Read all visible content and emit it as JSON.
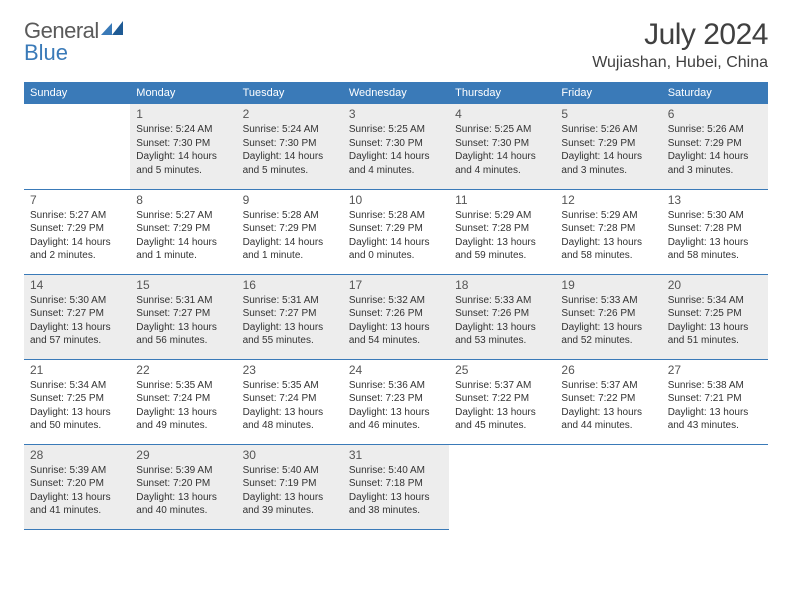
{
  "logo": {
    "text1": "General",
    "text2": "Blue"
  },
  "title": "July 2024",
  "location": "Wujiashan, Hubei, China",
  "weekdays": [
    "Sunday",
    "Monday",
    "Tuesday",
    "Wednesday",
    "Thursday",
    "Friday",
    "Saturday"
  ],
  "header_bg": "#3a7ab8",
  "shade_bg": "#ededed",
  "days": [
    {
      "n": 1,
      "sr": "5:24 AM",
      "ss": "7:30 PM",
      "dl": "14 hours and 5 minutes."
    },
    {
      "n": 2,
      "sr": "5:24 AM",
      "ss": "7:30 PM",
      "dl": "14 hours and 5 minutes."
    },
    {
      "n": 3,
      "sr": "5:25 AM",
      "ss": "7:30 PM",
      "dl": "14 hours and 4 minutes."
    },
    {
      "n": 4,
      "sr": "5:25 AM",
      "ss": "7:30 PM",
      "dl": "14 hours and 4 minutes."
    },
    {
      "n": 5,
      "sr": "5:26 AM",
      "ss": "7:29 PM",
      "dl": "14 hours and 3 minutes."
    },
    {
      "n": 6,
      "sr": "5:26 AM",
      "ss": "7:29 PM",
      "dl": "14 hours and 3 minutes."
    },
    {
      "n": 7,
      "sr": "5:27 AM",
      "ss": "7:29 PM",
      "dl": "14 hours and 2 minutes."
    },
    {
      "n": 8,
      "sr": "5:27 AM",
      "ss": "7:29 PM",
      "dl": "14 hours and 1 minute."
    },
    {
      "n": 9,
      "sr": "5:28 AM",
      "ss": "7:29 PM",
      "dl": "14 hours and 1 minute."
    },
    {
      "n": 10,
      "sr": "5:28 AM",
      "ss": "7:29 PM",
      "dl": "14 hours and 0 minutes."
    },
    {
      "n": 11,
      "sr": "5:29 AM",
      "ss": "7:28 PM",
      "dl": "13 hours and 59 minutes."
    },
    {
      "n": 12,
      "sr": "5:29 AM",
      "ss": "7:28 PM",
      "dl": "13 hours and 58 minutes."
    },
    {
      "n": 13,
      "sr": "5:30 AM",
      "ss": "7:28 PM",
      "dl": "13 hours and 58 minutes."
    },
    {
      "n": 14,
      "sr": "5:30 AM",
      "ss": "7:27 PM",
      "dl": "13 hours and 57 minutes."
    },
    {
      "n": 15,
      "sr": "5:31 AM",
      "ss": "7:27 PM",
      "dl": "13 hours and 56 minutes."
    },
    {
      "n": 16,
      "sr": "5:31 AM",
      "ss": "7:27 PM",
      "dl": "13 hours and 55 minutes."
    },
    {
      "n": 17,
      "sr": "5:32 AM",
      "ss": "7:26 PM",
      "dl": "13 hours and 54 minutes."
    },
    {
      "n": 18,
      "sr": "5:33 AM",
      "ss": "7:26 PM",
      "dl": "13 hours and 53 minutes."
    },
    {
      "n": 19,
      "sr": "5:33 AM",
      "ss": "7:26 PM",
      "dl": "13 hours and 52 minutes."
    },
    {
      "n": 20,
      "sr": "5:34 AM",
      "ss": "7:25 PM",
      "dl": "13 hours and 51 minutes."
    },
    {
      "n": 21,
      "sr": "5:34 AM",
      "ss": "7:25 PM",
      "dl": "13 hours and 50 minutes."
    },
    {
      "n": 22,
      "sr": "5:35 AM",
      "ss": "7:24 PM",
      "dl": "13 hours and 49 minutes."
    },
    {
      "n": 23,
      "sr": "5:35 AM",
      "ss": "7:24 PM",
      "dl": "13 hours and 48 minutes."
    },
    {
      "n": 24,
      "sr": "5:36 AM",
      "ss": "7:23 PM",
      "dl": "13 hours and 46 minutes."
    },
    {
      "n": 25,
      "sr": "5:37 AM",
      "ss": "7:22 PM",
      "dl": "13 hours and 45 minutes."
    },
    {
      "n": 26,
      "sr": "5:37 AM",
      "ss": "7:22 PM",
      "dl": "13 hours and 44 minutes."
    },
    {
      "n": 27,
      "sr": "5:38 AM",
      "ss": "7:21 PM",
      "dl": "13 hours and 43 minutes."
    },
    {
      "n": 28,
      "sr": "5:39 AM",
      "ss": "7:20 PM",
      "dl": "13 hours and 41 minutes."
    },
    {
      "n": 29,
      "sr": "5:39 AM",
      "ss": "7:20 PM",
      "dl": "13 hours and 40 minutes."
    },
    {
      "n": 30,
      "sr": "5:40 AM",
      "ss": "7:19 PM",
      "dl": "13 hours and 39 minutes."
    },
    {
      "n": 31,
      "sr": "5:40 AM",
      "ss": "7:18 PM",
      "dl": "13 hours and 38 minutes."
    }
  ],
  "labels": {
    "sunrise": "Sunrise: ",
    "sunset": "Sunset: ",
    "daylight": "Daylight: "
  },
  "first_weekday_offset": 1
}
